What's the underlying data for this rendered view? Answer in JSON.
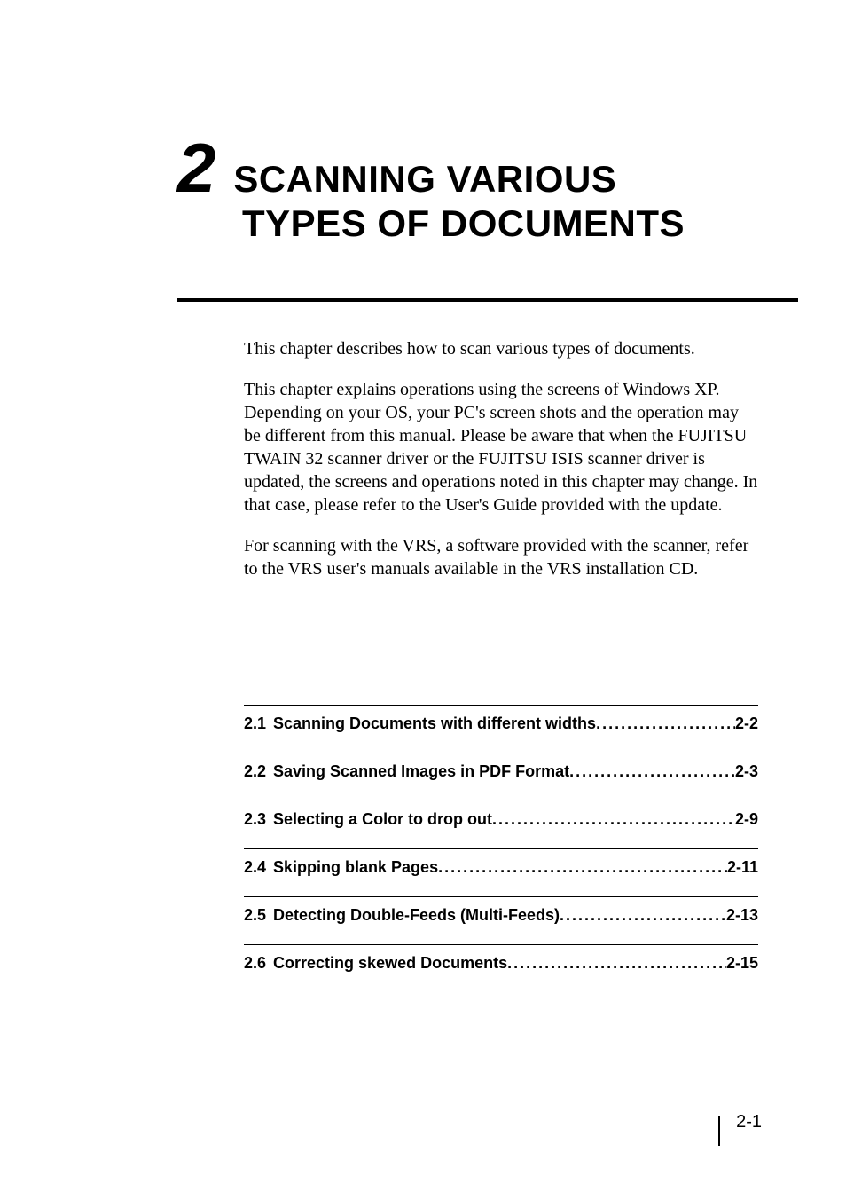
{
  "chapter": {
    "number": "2",
    "title_line1": "SCANNING VARIOUS",
    "title_line2": "TYPES OF DOCUMENTS"
  },
  "body": {
    "para1": "This chapter describes how to scan various types of documents.",
    "para2": "This chapter explains operations using the screens of Windows XP. Depending on your OS, your PC's screen shots and the operation may be different from this manual. Please be aware that when the FUJITSU TWAIN 32 scanner driver or the FUJITSU ISIS scanner driver is updated, the screens and operations noted in this chapter may change. In that case, please refer to the User's Guide provided with the update.",
    "para3": "For scanning with the VRS, a software provided with the scanner, refer to the VRS user's manuals available in the VRS installation CD."
  },
  "toc": [
    {
      "num": "2.1",
      "label": "Scanning Documents with different widths",
      "page": "2-2"
    },
    {
      "num": "2.2",
      "label": "Saving Scanned Images in PDF Format",
      "page": "2-3"
    },
    {
      "num": "2.3",
      "label": "Selecting a Color to drop out",
      "page": "2-9"
    },
    {
      "num": "2.4",
      "label": "Skipping blank Pages",
      "page": "2-11"
    },
    {
      "num": "2.5",
      "label": "Detecting Double-Feeds (Multi-Feeds)",
      "page": "2-13"
    },
    {
      "num": "2.6",
      "label": "Correcting skewed Documents",
      "page": "2-15"
    }
  ],
  "footer": {
    "page_number": "2-1"
  }
}
